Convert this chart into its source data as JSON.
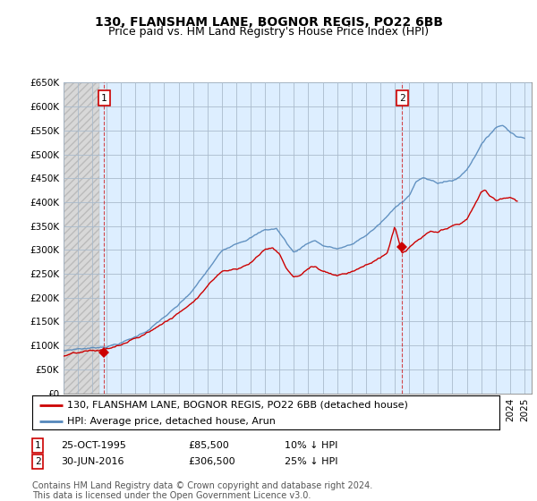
{
  "title": "130, FLANSHAM LANE, BOGNOR REGIS, PO22 6BB",
  "subtitle": "Price paid vs. HM Land Registry's House Price Index (HPI)",
  "legend_line1": "130, FLANSHAM LANE, BOGNOR REGIS, PO22 6BB (detached house)",
  "legend_line2": "HPI: Average price, detached house, Arun",
  "annotation1_label": "1",
  "annotation1_date": "25-OCT-1995",
  "annotation1_price": "£85,500",
  "annotation1_hpi": "10% ↓ HPI",
  "annotation2_label": "2",
  "annotation2_date": "30-JUN-2016",
  "annotation2_price": "£306,500",
  "annotation2_hpi": "25% ↓ HPI",
  "footnote": "Contains HM Land Registry data © Crown copyright and database right 2024.\nThis data is licensed under the Open Government Licence v3.0.",
  "ylim": [
    0,
    650000
  ],
  "yticks": [
    0,
    50000,
    100000,
    150000,
    200000,
    250000,
    300000,
    350000,
    400000,
    450000,
    500000,
    550000,
    600000,
    650000
  ],
  "xlim_start": 1993.0,
  "xlim_end": 2025.5,
  "point1_x": 1995.82,
  "point1_y": 85500,
  "point2_x": 2016.5,
  "point2_y": 306500,
  "red_color": "#cc0000",
  "blue_color": "#5588bb",
  "chart_bg": "#ddeeff",
  "hatch_bg": "#e0e0e0",
  "hatch_cutoff": 1995.5,
  "grid_color": "#aabbcc",
  "title_fontsize": 10,
  "subtitle_fontsize": 9,
  "axis_fontsize": 7.5,
  "legend_fontsize": 8,
  "annotation_fontsize": 8,
  "footnote_fontsize": 7
}
